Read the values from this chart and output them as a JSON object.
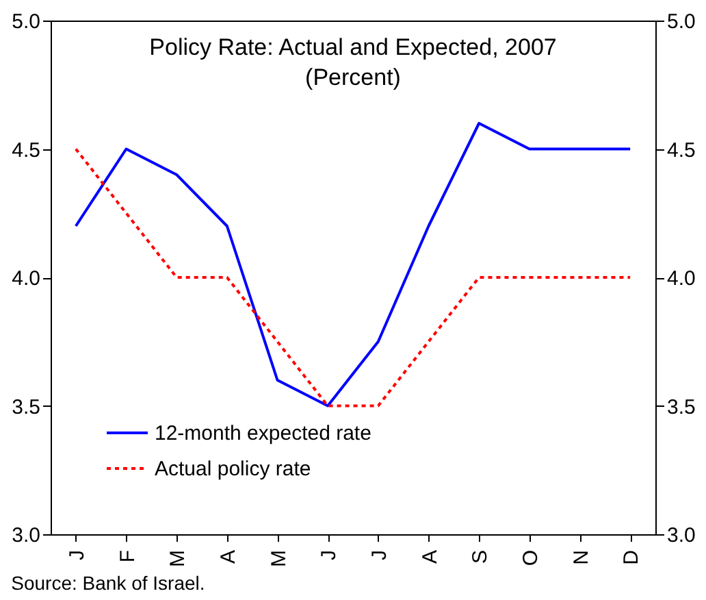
{
  "chart_data": {
    "type": "line",
    "title": "Policy Rate: Actual and Expected, 2007",
    "subtitle": "(Percent)",
    "categories": [
      "J",
      "F",
      "M",
      "A",
      "M",
      "J",
      "J",
      "A",
      "S",
      "O",
      "N",
      "D"
    ],
    "series": [
      {
        "name": "12-month expected rate",
        "color": "#0000ff",
        "line_style": "solid",
        "values": [
          4.2,
          4.5,
          4.4,
          4.2,
          3.6,
          3.5,
          3.75,
          4.2,
          4.6,
          4.5,
          4.5,
          4.5
        ]
      },
      {
        "name": "Actual policy rate",
        "color": "#ff0000",
        "line_style": "dotted",
        "values": [
          4.5,
          4.25,
          4.0,
          4.0,
          3.75,
          3.5,
          3.5,
          3.75,
          4.0,
          4.0,
          4.0,
          4.0
        ]
      }
    ],
    "ylim": [
      3,
      5
    ],
    "yticks": [
      {
        "value": 3,
        "label": "3.0"
      },
      {
        "value": 3.5,
        "label": "3.5"
      },
      {
        "value": 4,
        "label": "4.0"
      },
      {
        "value": 4.5,
        "label": "4.5"
      },
      {
        "value": 5,
        "label": "5.0"
      }
    ],
    "y2lim": [
      3,
      5
    ],
    "y2ticks": [
      {
        "value": 3,
        "label": "3.0"
      },
      {
        "value": 3.5,
        "label": "3.5"
      },
      {
        "value": 4,
        "label": "4.0"
      },
      {
        "value": 4.5,
        "label": "4.5"
      },
      {
        "value": 5,
        "label": "5.0"
      }
    ],
    "legend": "bottom left",
    "grid": false,
    "marker": "none",
    "annotations": [
      "Source: Bank of Israel."
    ]
  }
}
